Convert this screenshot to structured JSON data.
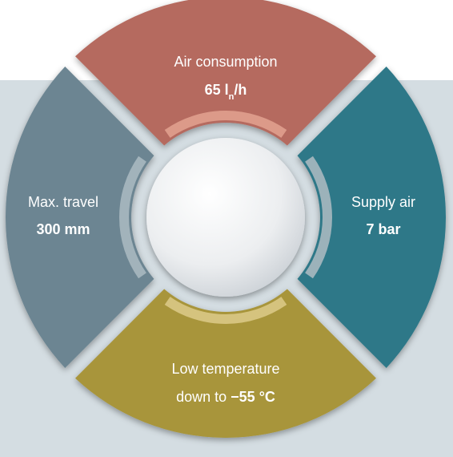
{
  "segments": {
    "top": {
      "title": "Air consumption",
      "value_main": "65 l",
      "value_sub": "n",
      "value_tail": "/h",
      "color": "#b56a5f"
    },
    "right": {
      "title": "Supply air",
      "value": "7 bar",
      "color": "#2e7888"
    },
    "bottom": {
      "title": "Low temperature",
      "value_prefix": "down to ",
      "value_strong": "−55 °C",
      "color": "#a8953a"
    },
    "left": {
      "title": "Max. travel",
      "value": "300 mm",
      "color": "#6c8592"
    }
  },
  "colors": {
    "background_panel": "#d4dde2",
    "top_inner_arc": "#e0a08e",
    "bottom_inner_arc": "#d9c886",
    "ring_light": "#a9b8c0",
    "center_disc": "#eceef0"
  }
}
